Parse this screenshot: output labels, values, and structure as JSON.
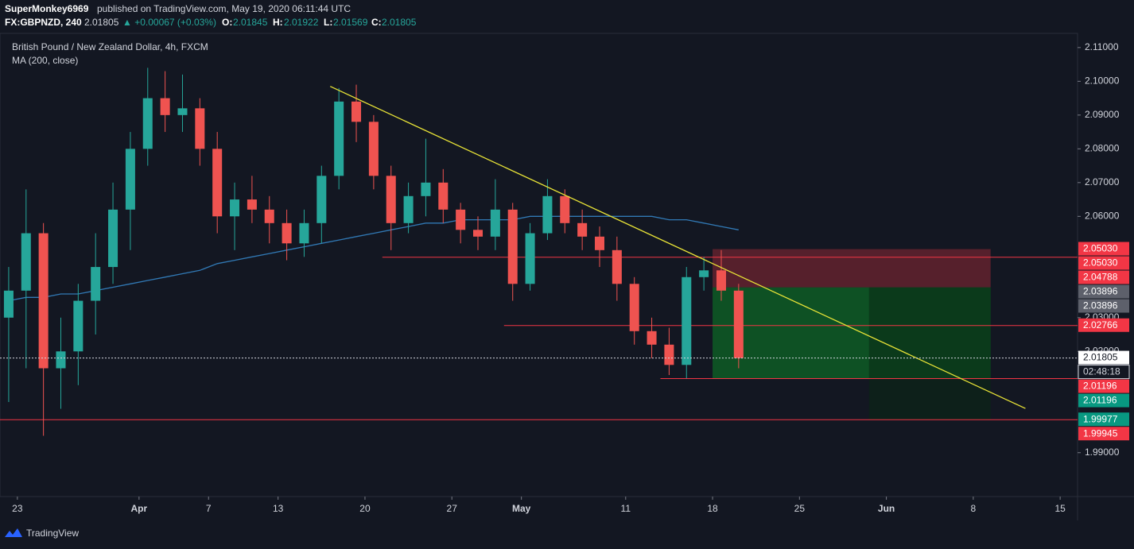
{
  "header": {
    "publisher": "SuperMonkey6969",
    "published": "published on TradingView.com, May 19, 2020 06:11:44 UTC",
    "symbol": "FX:GBPNZD, 240",
    "price": "2.01805",
    "change": "▲ +0.00067 (+0.03%)",
    "o_label": "O:",
    "o": "2.01845",
    "h_label": "H:",
    "h": "2.01922",
    "l_label": "L:",
    "l": "2.01569",
    "c_label": "C:",
    "c": "2.01805"
  },
  "footer": {
    "brand": "TradingView"
  },
  "chart_data": {
    "type": "candlestick",
    "title": "British Pound / New Zealand Dollar, 4h, FXCM",
    "x": [
      "2020-03-20",
      "2020-03-23",
      "2020-03-24",
      "2020-03-25",
      "2020-03-26",
      "2020-03-27",
      "2020-03-30",
      "2020-03-31",
      "2020-04-01",
      "2020-04-02",
      "2020-04-03",
      "2020-04-06",
      "2020-04-07",
      "2020-04-08",
      "2020-04-09",
      "2020-04-10",
      "2020-04-13",
      "2020-04-14",
      "2020-04-15",
      "2020-04-16",
      "2020-04-17",
      "2020-04-20",
      "2020-04-21",
      "2020-04-22",
      "2020-04-23",
      "2020-04-24",
      "2020-04-27",
      "2020-04-28",
      "2020-04-29",
      "2020-04-30",
      "2020-05-01",
      "2020-05-04",
      "2020-05-05",
      "2020-05-06",
      "2020-05-07",
      "2020-05-08",
      "2020-05-11",
      "2020-05-12",
      "2020-05-13",
      "2020-05-14",
      "2020-05-15",
      "2020-05-18",
      "2020-05-19"
    ],
    "open": [
      2.03,
      2.038,
      2.055,
      2.015,
      2.02,
      2.035,
      2.045,
      2.062,
      2.08,
      2.095,
      2.09,
      2.092,
      2.08,
      2.06,
      2.065,
      2.062,
      2.058,
      2.052,
      2.058,
      2.072,
      2.094,
      2.088,
      2.072,
      2.058,
      2.066,
      2.07,
      2.062,
      2.056,
      2.054,
      2.062,
      2.04,
      2.055,
      2.066,
      2.058,
      2.054,
      2.05,
      2.04,
      2.026,
      2.022,
      2.016,
      2.042,
      2.044,
      2.038
    ],
    "high": [
      2.045,
      2.068,
      2.058,
      2.03,
      2.04,
      2.055,
      2.07,
      2.085,
      2.104,
      2.103,
      2.102,
      2.095,
      2.085,
      2.07,
      2.072,
      2.066,
      2.062,
      2.062,
      2.075,
      2.098,
      2.099,
      2.09,
      2.075,
      2.07,
      2.083,
      2.074,
      2.064,
      2.06,
      2.071,
      2.064,
      2.058,
      2.071,
      2.068,
      2.062,
      2.057,
      2.054,
      2.042,
      2.03,
      2.027,
      2.045,
      2.048,
      2.05,
      2.04
    ],
    "low": [
      2.005,
      2.015,
      1.995,
      2.003,
      2.01,
      2.025,
      2.04,
      2.05,
      2.075,
      2.085,
      2.085,
      2.075,
      2.055,
      2.05,
      2.058,
      2.052,
      2.047,
      2.048,
      2.052,
      2.068,
      2.082,
      2.068,
      2.05,
      2.055,
      2.06,
      2.058,
      2.052,
      2.05,
      2.05,
      2.035,
      2.038,
      2.053,
      2.055,
      2.05,
      2.045,
      2.035,
      2.022,
      2.018,
      2.013,
      2.012,
      2.038,
      2.035,
      2.015
    ],
    "close": [
      2.038,
      2.055,
      2.015,
      2.02,
      2.035,
      2.045,
      2.062,
      2.08,
      2.095,
      2.09,
      2.092,
      2.08,
      2.06,
      2.065,
      2.062,
      2.058,
      2.052,
      2.058,
      2.072,
      2.094,
      2.088,
      2.072,
      2.058,
      2.066,
      2.07,
      2.062,
      2.056,
      2.054,
      2.062,
      2.04,
      2.055,
      2.066,
      2.058,
      2.054,
      2.05,
      2.04,
      2.026,
      2.022,
      2.016,
      2.042,
      2.044,
      2.038,
      2.018
    ],
    "up_color": "#26a69a",
    "down_color": "#ef5350",
    "series": [
      {
        "name": "MA (200, close)",
        "color": "#3179b5",
        "values": [
          2.035,
          2.036,
          2.036,
          2.037,
          2.037,
          2.038,
          2.039,
          2.04,
          2.041,
          2.042,
          2.043,
          2.044,
          2.046,
          2.047,
          2.048,
          2.049,
          2.05,
          2.051,
          2.052,
          2.053,
          2.054,
          2.055,
          2.056,
          2.057,
          2.058,
          2.058,
          2.059,
          2.059,
          2.059,
          2.059,
          2.06,
          2.06,
          2.06,
          2.06,
          2.06,
          2.06,
          2.06,
          2.06,
          2.059,
          2.059,
          2.058,
          2.057,
          2.056
        ]
      }
    ],
    "xlim": [
      "2020-03-20",
      "2020-06-16"
    ],
    "xticks": [
      {
        "value": "2020-03-23",
        "label": "23"
      },
      {
        "value": "2020-04-01",
        "label": "Apr"
      },
      {
        "value": "2020-04-07",
        "label": "7"
      },
      {
        "value": "2020-04-13",
        "label": "13"
      },
      {
        "value": "2020-04-20",
        "label": "20"
      },
      {
        "value": "2020-04-27",
        "label": "27"
      },
      {
        "value": "2020-05-01",
        "label": "May"
      },
      {
        "value": "2020-05-11",
        "label": "11"
      },
      {
        "value": "2020-05-18",
        "label": "18"
      },
      {
        "value": "2020-05-25",
        "label": "25"
      },
      {
        "value": "2020-06-01",
        "label": "Jun"
      },
      {
        "value": "2020-06-08",
        "label": "8"
      },
      {
        "value": "2020-06-15",
        "label": "15"
      }
    ],
    "ylim": [
      1.977,
      2.1142
    ],
    "yticks": [
      {
        "value": 2.11,
        "label": "2.11000"
      },
      {
        "value": 2.1,
        "label": "2.10000"
      },
      {
        "value": 2.09,
        "label": "2.09000"
      },
      {
        "value": 2.08,
        "label": "2.08000"
      },
      {
        "value": 2.07,
        "label": "2.07000"
      },
      {
        "value": 2.06,
        "label": "2.06000"
      },
      {
        "value": 2.03,
        "label": "2.03000"
      },
      {
        "value": 2.02,
        "label": "2.02000"
      },
      {
        "value": 1.99,
        "label": "1.99000"
      }
    ],
    "hlines": [
      {
        "value": 2.04788,
        "start": "2020-04-21"
      },
      {
        "value": 2.02766,
        "start": "2020-04-30"
      },
      {
        "value": 2.01196,
        "start": "2020-05-13"
      },
      {
        "value": 1.99977,
        "start": "2020-03-20"
      }
    ],
    "trendline": {
      "start": "2020-04-16",
      "end": "2020-06-11",
      "values": [
        2.0985,
        2.0031
      ],
      "color": "#e8e337"
    },
    "position": {
      "entry": 2.03896,
      "stop": 2.0503,
      "target": 2.01196,
      "target2": 1.99977,
      "start": "2020-05-18",
      "mid": "2020-05-29",
      "end": "2020-06-09"
    },
    "last": {
      "value": 2.01805,
      "label": "2.01805",
      "countdown": "02:48:18"
    },
    "price_labels": [
      {
        "value": 2.0503,
        "label": "2.05030",
        "color": "#f23645"
      },
      {
        "value": 2.0503,
        "label": "2.05030",
        "color": "#f23645"
      },
      {
        "value": 2.04788,
        "label": "2.04788",
        "color": "#f23645"
      },
      {
        "value": 2.03896,
        "label": "2.03896",
        "color": "#5d606b"
      },
      {
        "value": 2.03896,
        "label": "2.03896",
        "color": "#5d606b"
      },
      {
        "value": 2.02766,
        "label": "2.02766",
        "color": "#f23645"
      },
      {
        "value": 2.01196,
        "label": "2.01196",
        "color": "#f23645"
      },
      {
        "value": 2.01196,
        "label": "2.01196",
        "color": "#089981"
      },
      {
        "value": 1.99977,
        "label": "1.99977",
        "color": "#089981"
      },
      {
        "value": 1.99945,
        "label": "1.99945",
        "color": "#f23645"
      }
    ]
  }
}
